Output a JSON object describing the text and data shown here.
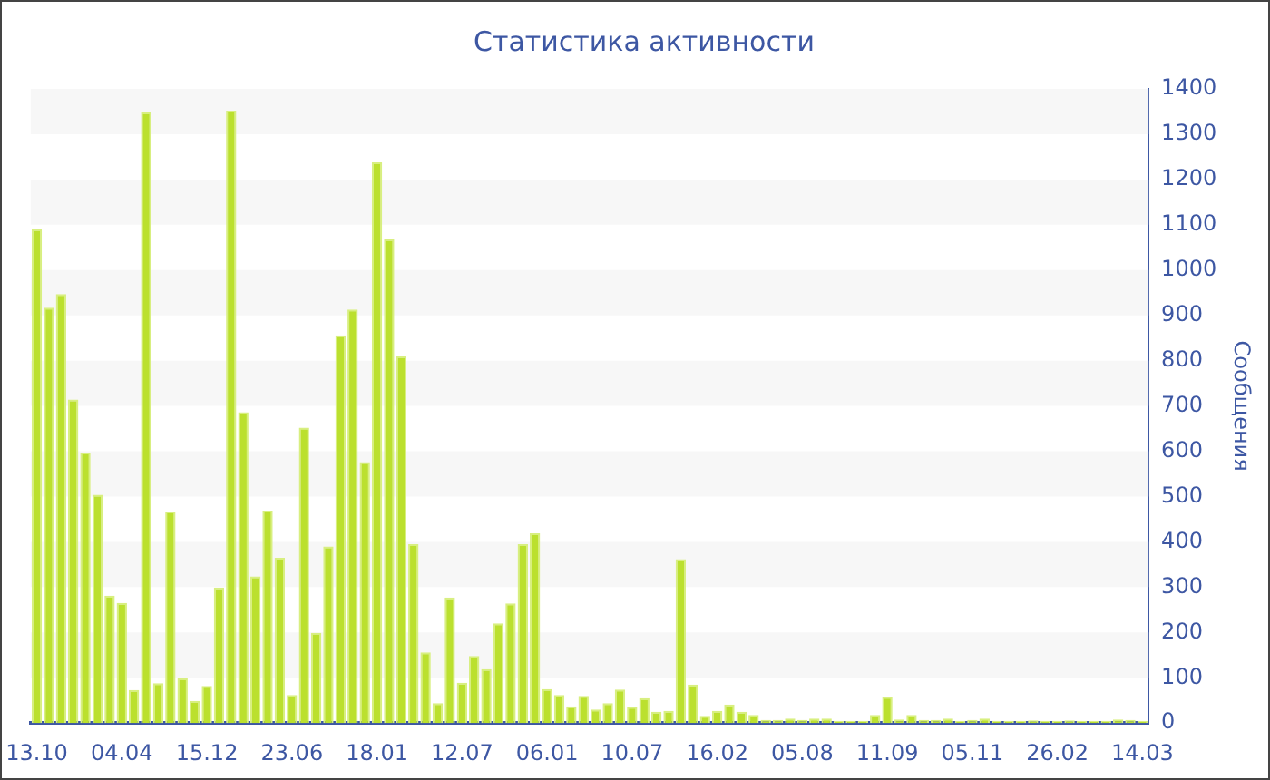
{
  "chart_data": {
    "type": "bar",
    "title": "Статистика активности",
    "ylabel": "Сообщения",
    "categories": [
      "13.10",
      null,
      null,
      null,
      null,
      null,
      null,
      "04.04",
      null,
      null,
      null,
      null,
      null,
      null,
      "15.12",
      null,
      null,
      null,
      null,
      null,
      null,
      "23.06",
      null,
      null,
      null,
      null,
      null,
      null,
      "18.01",
      null,
      null,
      null,
      null,
      null,
      null,
      "12.07",
      null,
      null,
      null,
      null,
      null,
      null,
      "06.01",
      null,
      null,
      null,
      null,
      null,
      null,
      "10.07",
      null,
      null,
      null,
      null,
      null,
      null,
      "16.02",
      null,
      null,
      null,
      null,
      null,
      null,
      "05.08",
      null,
      null,
      null,
      null,
      null,
      null,
      "11.09",
      null,
      null,
      null,
      null,
      null,
      null,
      "05.11",
      null,
      null,
      null,
      null,
      null,
      null,
      "26.02",
      null,
      null,
      null,
      null,
      null,
      null,
      "14.03"
    ],
    "values": [
      1090,
      917,
      947,
      714,
      597,
      504,
      281,
      265,
      73,
      1348,
      88,
      467,
      99,
      49,
      82,
      299,
      1352,
      686,
      324,
      469,
      365,
      62,
      652,
      199,
      390,
      856,
      913,
      576,
      1238,
      1068,
      810,
      395,
      156,
      44,
      277,
      89,
      148,
      119,
      220,
      264,
      395,
      419,
      75,
      62,
      37,
      60,
      30,
      44,
      74,
      36,
      55,
      25,
      27,
      362,
      85,
      16,
      27,
      41,
      25,
      18,
      7,
      7,
      10,
      7,
      10,
      10,
      5,
      5,
      5,
      18,
      58,
      8,
      18,
      7,
      7,
      10,
      5,
      7,
      10,
      5,
      5,
      5,
      6,
      5,
      5,
      6,
      5,
      5,
      5,
      8,
      7,
      5
    ],
    "color": "#bbe02e",
    "ylim": [
      0,
      1400
    ],
    "yticks": [
      0,
      100,
      200,
      300,
      400,
      500,
      600,
      700,
      800,
      900,
      1000,
      1100,
      1200,
      1300,
      1400
    ]
  }
}
